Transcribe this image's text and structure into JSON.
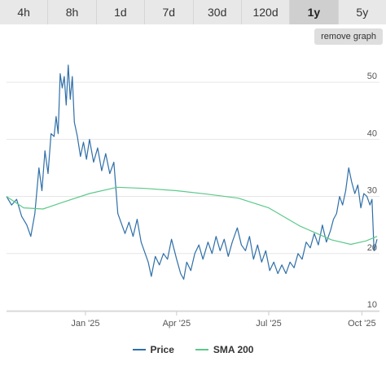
{
  "tabs": [
    {
      "label": "4h"
    },
    {
      "label": "8h"
    },
    {
      "label": "1d"
    },
    {
      "label": "7d"
    },
    {
      "label": "30d"
    },
    {
      "label": "120d"
    },
    {
      "label": "1y",
      "active": true
    },
    {
      "label": "5y"
    }
  ],
  "remove_graph_label": "remove graph",
  "colors": {
    "price": "#2f6fa8",
    "sma": "#5cc98a",
    "grid": "#e6e6e6"
  },
  "chart_data": {
    "type": "line",
    "title": "",
    "xlabel": "",
    "ylabel": "",
    "x_range": [
      "2024-10-15",
      "2025-10-16"
    ],
    "ylim": [
      10,
      55
    ],
    "y_ticks": [
      10,
      20,
      30,
      40,
      50
    ],
    "x_ticks": [
      {
        "date": "2025-01-01",
        "label": "Jan '25"
      },
      {
        "date": "2025-04-01",
        "label": "Apr '25"
      },
      {
        "date": "2025-07-01",
        "label": "Jul '25"
      },
      {
        "date": "2025-10-01",
        "label": "Oct '25"
      }
    ],
    "grid": "horizontal",
    "legend_position": "bottom",
    "series": [
      {
        "name": "Price",
        "points": [
          [
            "2024-10-15",
            30.0
          ],
          [
            "2024-10-20",
            28.5
          ],
          [
            "2024-10-25",
            29.5
          ],
          [
            "2024-10-30",
            26.5
          ],
          [
            "2024-11-04",
            25.0
          ],
          [
            "2024-11-08",
            23.0
          ],
          [
            "2024-11-12",
            27.0
          ],
          [
            "2024-11-16",
            35.0
          ],
          [
            "2024-11-19",
            31.0
          ],
          [
            "2024-11-22",
            38.0
          ],
          [
            "2024-11-25",
            34.0
          ],
          [
            "2024-11-28",
            41.0
          ],
          [
            "2024-12-01",
            40.5
          ],
          [
            "2024-12-03",
            44.0
          ],
          [
            "2024-12-05",
            41.0
          ],
          [
            "2024-12-07",
            51.5
          ],
          [
            "2024-12-09",
            49.0
          ],
          [
            "2024-12-11",
            51.0
          ],
          [
            "2024-12-13",
            46.0
          ],
          [
            "2024-12-15",
            53.0
          ],
          [
            "2024-12-17",
            47.0
          ],
          [
            "2024-12-19",
            51.0
          ],
          [
            "2024-12-21",
            43.0
          ],
          [
            "2024-12-24",
            40.5
          ],
          [
            "2024-12-27",
            37.0
          ],
          [
            "2024-12-30",
            39.5
          ],
          [
            "2025-01-02",
            36.5
          ],
          [
            "2025-01-05",
            40.0
          ],
          [
            "2025-01-09",
            36.0
          ],
          [
            "2025-01-13",
            38.5
          ],
          [
            "2025-01-17",
            34.5
          ],
          [
            "2025-01-21",
            37.5
          ],
          [
            "2025-01-25",
            34.0
          ],
          [
            "2025-01-29",
            36.0
          ],
          [
            "2025-02-02",
            27.0
          ],
          [
            "2025-02-05",
            25.5
          ],
          [
            "2025-02-09",
            23.5
          ],
          [
            "2025-02-13",
            25.5
          ],
          [
            "2025-02-17",
            23.0
          ],
          [
            "2025-02-21",
            26.0
          ],
          [
            "2025-02-25",
            22.0
          ],
          [
            "2025-03-01",
            20.0
          ],
          [
            "2025-03-04",
            18.5
          ],
          [
            "2025-03-07",
            16.0
          ],
          [
            "2025-03-11",
            19.5
          ],
          [
            "2025-03-15",
            18.0
          ],
          [
            "2025-03-19",
            20.0
          ],
          [
            "2025-03-23",
            19.0
          ],
          [
            "2025-03-27",
            22.5
          ],
          [
            "2025-04-01",
            19.0
          ],
          [
            "2025-04-05",
            16.5
          ],
          [
            "2025-04-08",
            15.5
          ],
          [
            "2025-04-11",
            18.5
          ],
          [
            "2025-04-15",
            17.0
          ],
          [
            "2025-04-19",
            20.0
          ],
          [
            "2025-04-23",
            21.5
          ],
          [
            "2025-04-27",
            19.0
          ],
          [
            "2025-05-02",
            22.0
          ],
          [
            "2025-05-06",
            20.0
          ],
          [
            "2025-05-10",
            23.0
          ],
          [
            "2025-05-14",
            20.5
          ],
          [
            "2025-05-18",
            22.5
          ],
          [
            "2025-05-22",
            19.5
          ],
          [
            "2025-05-26",
            22.0
          ],
          [
            "2025-05-31",
            24.5
          ],
          [
            "2025-06-04",
            21.5
          ],
          [
            "2025-06-08",
            20.5
          ],
          [
            "2025-06-12",
            23.0
          ],
          [
            "2025-06-16",
            19.0
          ],
          [
            "2025-06-20",
            21.5
          ],
          [
            "2025-06-24",
            18.5
          ],
          [
            "2025-06-28",
            20.5
          ],
          [
            "2025-07-02",
            17.0
          ],
          [
            "2025-07-06",
            18.5
          ],
          [
            "2025-07-10",
            16.5
          ],
          [
            "2025-07-14",
            18.0
          ],
          [
            "2025-07-18",
            16.5
          ],
          [
            "2025-07-22",
            18.5
          ],
          [
            "2025-07-26",
            17.5
          ],
          [
            "2025-07-30",
            20.0
          ],
          [
            "2025-08-03",
            19.0
          ],
          [
            "2025-08-07",
            22.0
          ],
          [
            "2025-08-11",
            21.0
          ],
          [
            "2025-08-15",
            23.5
          ],
          [
            "2025-08-19",
            21.5
          ],
          [
            "2025-08-23",
            25.0
          ],
          [
            "2025-08-27",
            22.0
          ],
          [
            "2025-08-31",
            24.0
          ],
          [
            "2025-09-03",
            26.0
          ],
          [
            "2025-09-06",
            27.0
          ],
          [
            "2025-09-09",
            30.0
          ],
          [
            "2025-09-12",
            28.5
          ],
          [
            "2025-09-15",
            31.0
          ],
          [
            "2025-09-18",
            35.0
          ],
          [
            "2025-09-21",
            32.5
          ],
          [
            "2025-09-24",
            30.5
          ],
          [
            "2025-09-27",
            32.0
          ],
          [
            "2025-09-30",
            28.0
          ],
          [
            "2025-10-03",
            30.5
          ],
          [
            "2025-10-06",
            30.0
          ],
          [
            "2025-10-09",
            28.5
          ],
          [
            "2025-10-11",
            29.5
          ],
          [
            "2025-10-13",
            20.5
          ],
          [
            "2025-10-16",
            22.5
          ]
        ]
      },
      {
        "name": "SMA 200",
        "points": [
          [
            "2024-10-15",
            30.0
          ],
          [
            "2024-11-01",
            28.0
          ],
          [
            "2024-11-20",
            27.8
          ],
          [
            "2024-12-10",
            29.0
          ],
          [
            "2025-01-05",
            30.5
          ],
          [
            "2025-02-01",
            31.6
          ],
          [
            "2025-03-01",
            31.4
          ],
          [
            "2025-04-01",
            31.0
          ],
          [
            "2025-05-01",
            30.4
          ],
          [
            "2025-06-01",
            29.7
          ],
          [
            "2025-07-01",
            28.0
          ],
          [
            "2025-08-01",
            24.8
          ],
          [
            "2025-09-01",
            22.4
          ],
          [
            "2025-09-20",
            21.6
          ],
          [
            "2025-10-05",
            22.2
          ],
          [
            "2025-10-16",
            23.0
          ]
        ]
      }
    ]
  }
}
